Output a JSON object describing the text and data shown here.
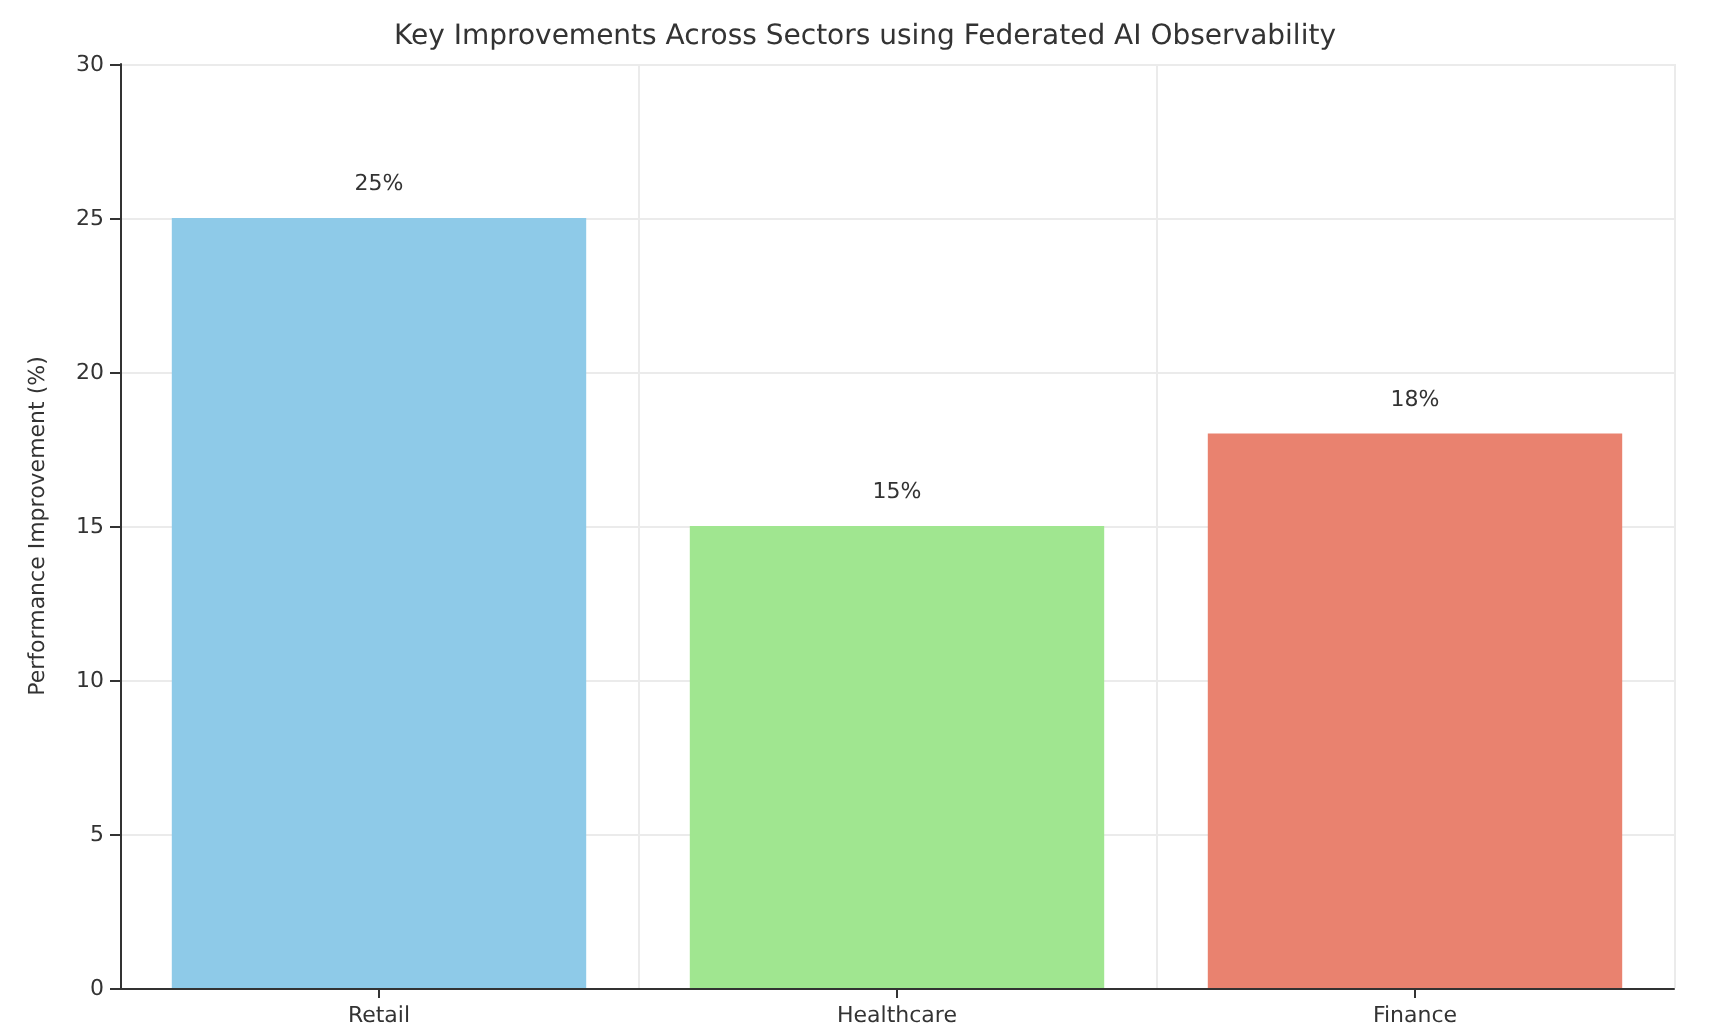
{
  "chart_data": {
    "type": "bar",
    "title": "Key Improvements Across Sectors using Federated AI Observability",
    "ylabel": "Performance Improvement (%)",
    "categories": [
      "Retail",
      "Healthcare",
      "Finance"
    ],
    "values": [
      25,
      15,
      18
    ],
    "colors": [
      "#8ecae8",
      "#a0e690",
      "#e9826f"
    ],
    "value_labels": [
      "25%",
      "15%",
      "18%"
    ],
    "ylim": [
      0,
      30
    ],
    "yticks": [
      0,
      5,
      10,
      15,
      20,
      25,
      30
    ],
    "grid": true
  }
}
